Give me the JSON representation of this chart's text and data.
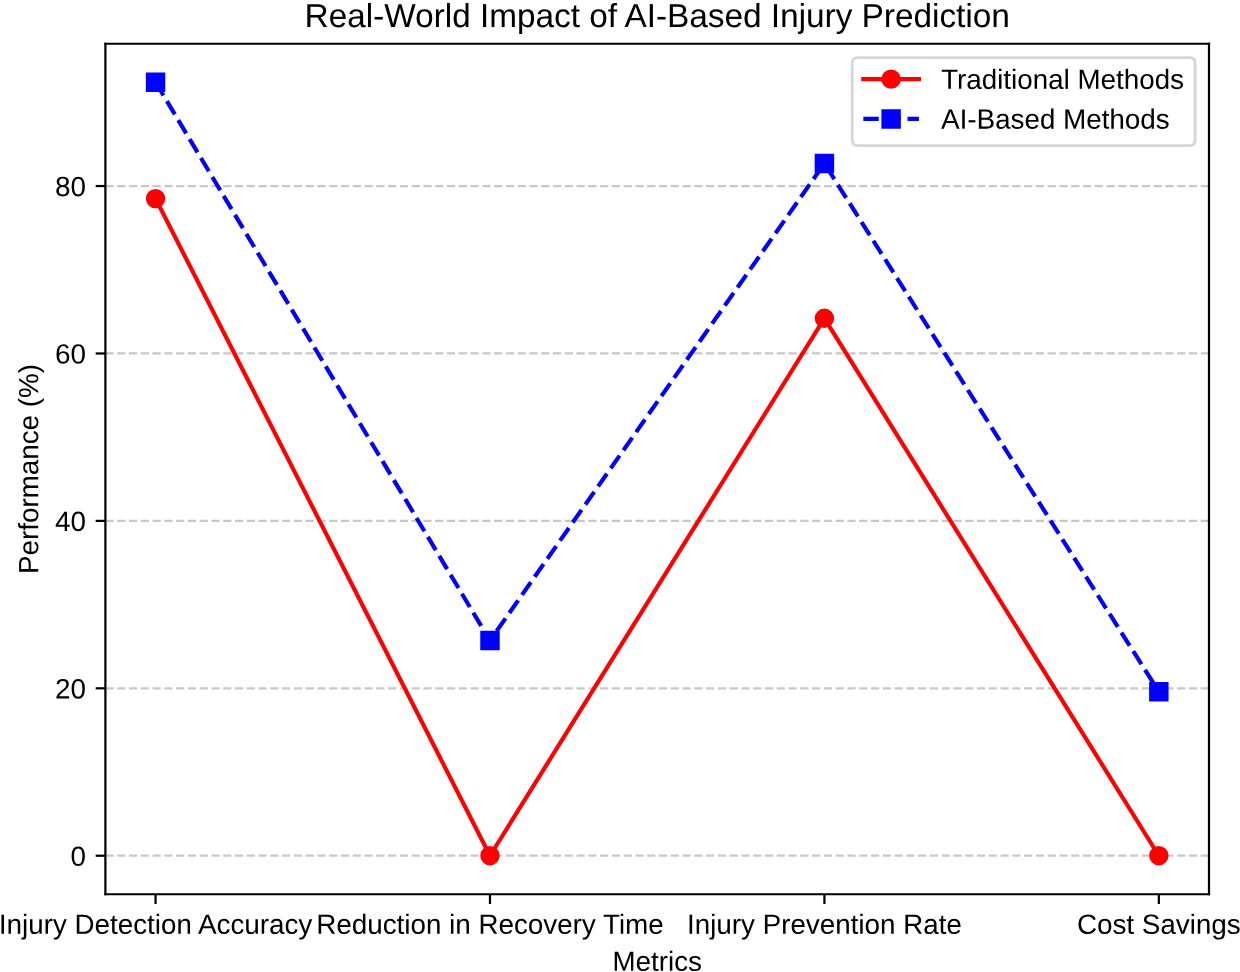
{
  "chart_data": {
    "type": "line",
    "title": "Real-World Impact of AI-Based Injury Prediction",
    "xlabel": "Metrics",
    "ylabel": "Performance (%)",
    "categories": [
      "Injury Detection Accuracy",
      "Reduction in Recovery Time",
      "Injury Prevention Rate",
      "Cost Savings"
    ],
    "series": [
      {
        "name": "Traditional Methods",
        "color": "#ff0000",
        "values": [
          78.5,
          0,
          64.2,
          0
        ],
        "marker": "circle",
        "line_style": "solid"
      },
      {
        "name": "AI-Based Methods",
        "color": "#0000ff",
        "values": [
          92.4,
          25.7,
          82.7,
          19.6
        ],
        "marker": "square",
        "line_style": "dashed"
      }
    ],
    "ylim": [
      -4.6,
      97.0
    ],
    "yticks": [
      0,
      20,
      40,
      60,
      80
    ],
    "grid": "y",
    "legend": "top right"
  }
}
